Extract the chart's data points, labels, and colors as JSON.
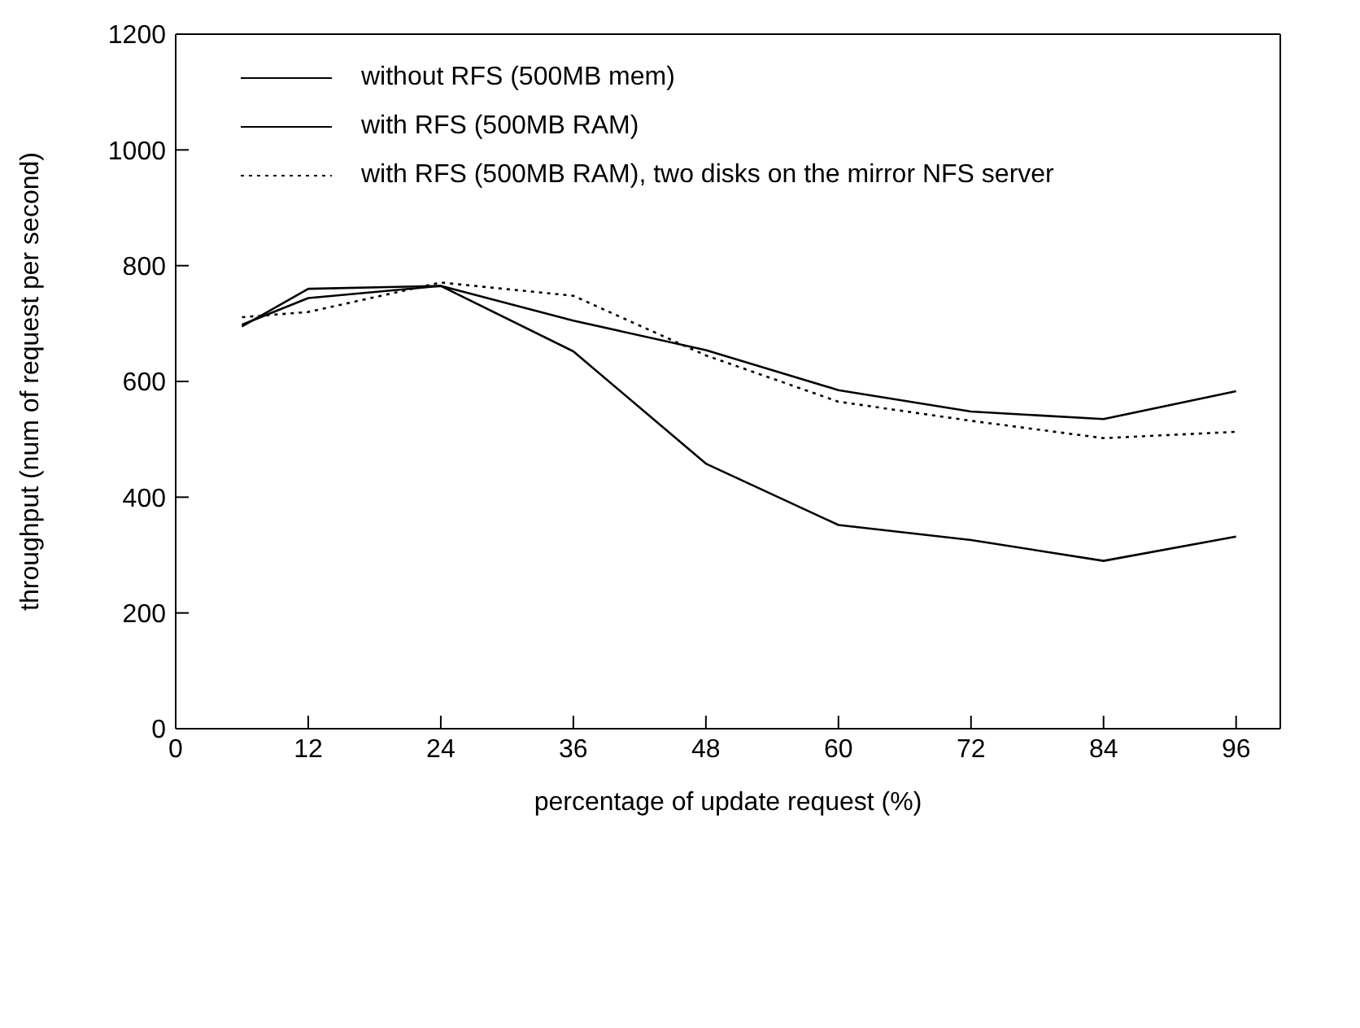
{
  "chart_data": {
    "type": "line",
    "xlabel": "percentage of update request (%)",
    "ylabel": "throughput (num of request per second)",
    "x": [
      6,
      12,
      24,
      36,
      48,
      60,
      72,
      84,
      96
    ],
    "series": [
      {
        "name": "without RFS (500MB mem)",
        "color": "#000000",
        "line_style": "solid",
        "values": [
          698,
          744,
          765,
          705,
          654,
          585,
          548,
          535,
          583
        ]
      },
      {
        "name": "with RFS (500MB RAM)",
        "color": "#000000",
        "line_style": "solid",
        "values": [
          695,
          760,
          765,
          652,
          458,
          352,
          326,
          290,
          332
        ]
      },
      {
        "name": "with RFS (500MB RAM), two disks on the mirror NFS server",
        "color": "#000000",
        "line_style": "dotted",
        "values": [
          711,
          720,
          771,
          748,
          645,
          565,
          532,
          502,
          513
        ]
      }
    ],
    "xlim": [
      0,
      100
    ],
    "xticks": [
      0,
      12,
      24,
      36,
      48,
      60,
      72,
      84,
      96
    ],
    "ylim": [
      0,
      1200
    ],
    "yticks": [
      0,
      200,
      400,
      600,
      800,
      1000,
      1200
    ],
    "grid": false,
    "legend": "top left",
    "marker": "none"
  }
}
